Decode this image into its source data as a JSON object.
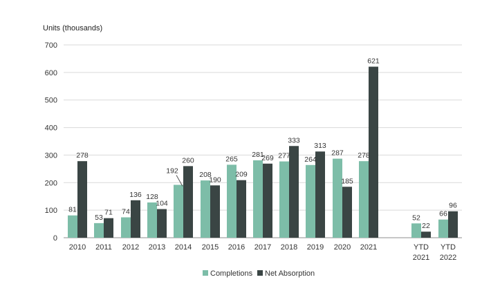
{
  "chart_data": {
    "type": "bar",
    "title": "",
    "ylabel": "Units (thousands)",
    "xlabel": "",
    "ylim": [
      0,
      700
    ],
    "yticks": [
      0,
      100,
      200,
      300,
      400,
      500,
      600,
      700
    ],
    "categories": [
      [
        "2010"
      ],
      [
        "2011"
      ],
      [
        "2012"
      ],
      [
        "2013"
      ],
      [
        "2014"
      ],
      [
        "2015"
      ],
      [
        "2016"
      ],
      [
        "2017"
      ],
      [
        "2018"
      ],
      [
        "2019"
      ],
      [
        "2020"
      ],
      [
        "2021"
      ],
      [
        "YTD",
        "2021"
      ],
      [
        "YTD",
        "2022"
      ]
    ],
    "series": [
      {
        "name": "Completions",
        "color": "#7dbda8",
        "values": [
          81,
          53,
          74,
          128,
          192,
          208,
          265,
          281,
          277,
          264,
          287,
          278,
          52,
          66
        ]
      },
      {
        "name": "Net Absorption",
        "color": "#3a4544",
        "values": [
          278,
          71,
          136,
          104,
          260,
          190,
          209,
          269,
          333,
          313,
          185,
          621,
          22,
          96
        ]
      }
    ],
    "legend": "bottom-center",
    "grid": true
  }
}
